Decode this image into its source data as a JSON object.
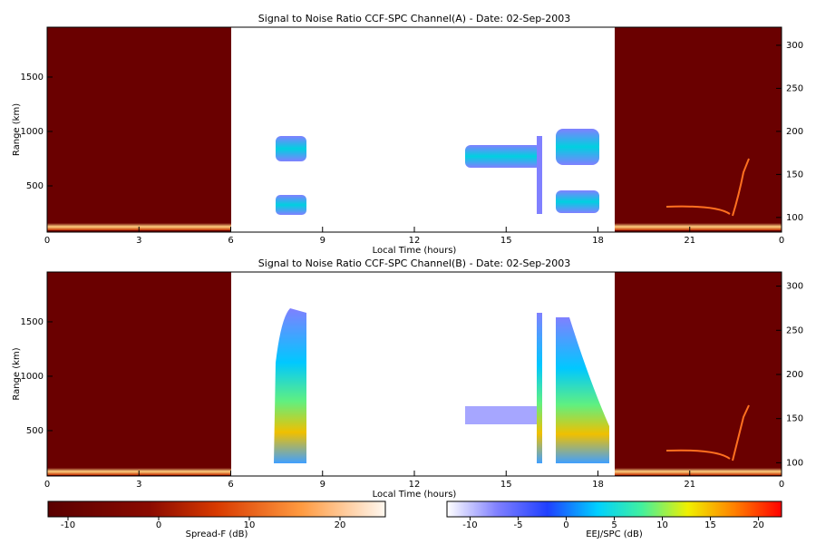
{
  "chart_data": [
    {
      "type": "heatmap",
      "title": "Signal to Noise Ratio CCF-SPC Channel(A) - Date: 02-Sep-2003",
      "xlabel": "Local Time (hours)",
      "ylabel": "Range (km)",
      "xlim": [
        0,
        24
      ],
      "xticks": [
        0,
        3,
        6,
        9,
        12,
        15,
        18,
        21,
        {
          "value": 24,
          "label": "0"
        }
      ],
      "ylim": [
        75,
        1958
      ],
      "yticks": [
        500,
        1000,
        1500
      ],
      "y2lim": [
        83,
        321
      ],
      "y2ticks": [
        100,
        150,
        200,
        250,
        300
      ]
    },
    {
      "type": "heatmap",
      "title": "Signal to Noise Ratio CCF-SPC Channel(B) - Date: 02-Sep-2003",
      "xlabel": "Local Time (hours)",
      "ylabel": "Range (km)",
      "xlim": [
        0,
        24
      ],
      "xticks": [
        0,
        3,
        6,
        9,
        12,
        15,
        18,
        21,
        {
          "value": 24,
          "label": "0"
        }
      ],
      "ylim": [
        83,
        1958
      ],
      "yticks": [
        500,
        1000,
        1500
      ],
      "y2lim": [
        85,
        316
      ],
      "y2ticks": [
        100,
        150,
        200,
        250,
        300
      ]
    }
  ],
  "colorbars": [
    {
      "label": "Spread-F (dB)",
      "lim": [
        -12.2,
        25
      ],
      "ticks": [
        -10,
        0,
        10,
        20
      ]
    },
    {
      "label": "EEJ/SPC (dB)",
      "lim": [
        -12.4,
        22.4
      ],
      "ticks": [
        -10,
        -5,
        0,
        5,
        10,
        15,
        20
      ]
    }
  ]
}
